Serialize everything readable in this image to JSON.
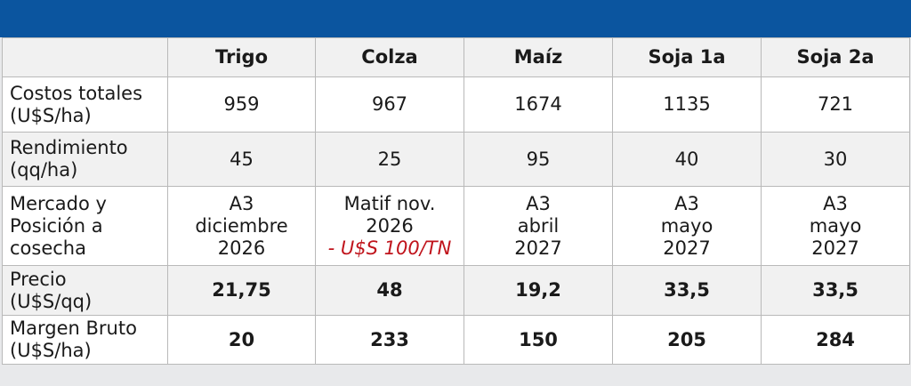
{
  "table": {
    "header": [
      "Trigo",
      "Colza",
      "Maíz",
      "Soja 1a",
      "Soja 2a"
    ],
    "rows": [
      {
        "label": [
          "Costos totales",
          "(U$S/ha)"
        ],
        "cells": [
          {
            "lines": [
              "959"
            ]
          },
          {
            "lines": [
              "967"
            ]
          },
          {
            "lines": [
              "1674"
            ]
          },
          {
            "lines": [
              "1135"
            ]
          },
          {
            "lines": [
              "721"
            ]
          }
        ]
      },
      {
        "label": [
          "Rendimiento",
          "(qq/ha)"
        ],
        "cells": [
          {
            "lines": [
              "45"
            ]
          },
          {
            "lines": [
              "25"
            ]
          },
          {
            "lines": [
              "95"
            ]
          },
          {
            "lines": [
              "40"
            ]
          },
          {
            "lines": [
              "30"
            ]
          }
        ]
      },
      {
        "label": [
          "Mercado y",
          "Posición a",
          "cosecha"
        ],
        "cells": [
          {
            "lines": [
              "A3",
              "diciembre",
              "2026"
            ]
          },
          {
            "lines": [
              "Matif nov.",
              "2026"
            ],
            "note": "- U$S 100/TN"
          },
          {
            "lines": [
              "A3",
              "abril",
              "2027"
            ]
          },
          {
            "lines": [
              "A3",
              "mayo",
              "2027"
            ]
          },
          {
            "lines": [
              "A3",
              "mayo",
              "2027"
            ]
          }
        ]
      },
      {
        "label": [
          "Precio",
          "(U$S/qq)"
        ],
        "cells": [
          {
            "lines": [
              "21,75"
            ]
          },
          {
            "lines": [
              "48"
            ]
          },
          {
            "lines": [
              "19,2"
            ]
          },
          {
            "lines": [
              "33,5"
            ]
          },
          {
            "lines": [
              "33,5"
            ]
          }
        ]
      },
      {
        "label": [
          "Margen Bruto",
          "(U$S/ha)"
        ],
        "cells": [
          {
            "lines": [
              "20"
            ]
          },
          {
            "lines": [
              "233"
            ]
          },
          {
            "lines": [
              "150"
            ]
          },
          {
            "lines": [
              "205"
            ]
          },
          {
            "lines": [
              "284"
            ]
          }
        ]
      }
    ]
  }
}
